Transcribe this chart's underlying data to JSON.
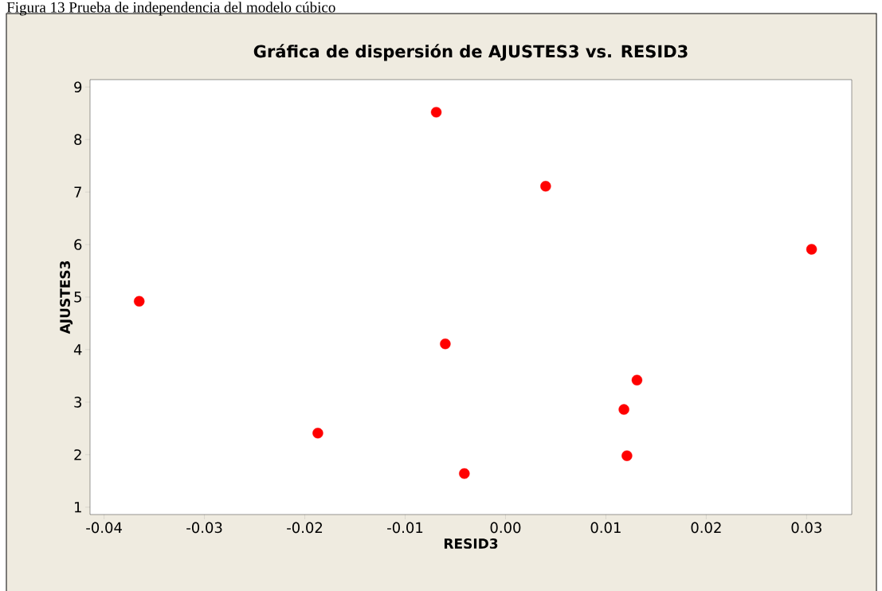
{
  "chart_data": {
    "type": "scatter",
    "title": "Gráfica de dispersión de AJUSTES3 vs. RESID3",
    "xlabel": "RESID3",
    "ylabel": "AJUSTES3",
    "annotations": [
      "Figura 13 Prueba de independencia del modelo cúbico"
    ],
    "x": [
      -0.0365,
      -0.0187,
      -0.0069,
      -0.006,
      -0.0041,
      0.004,
      0.0118,
      0.0121,
      0.0131,
      0.0305
    ],
    "series": [
      {
        "color": "#ff0000",
        "values": [
          4.92,
          2.41,
          8.52,
          4.11,
          1.64,
          7.11,
          2.86,
          1.98,
          3.42,
          5.91
        ]
      }
    ],
    "marker": "circle",
    "xlim": [
      -0.0414,
      0.0345
    ],
    "ylim": [
      0.86,
      9.14
    ],
    "xticks": [
      {
        "value": -0.04,
        "label": "-0.04"
      },
      {
        "value": -0.03,
        "label": "-0.03"
      },
      {
        "value": -0.02,
        "label": "-0.02"
      },
      {
        "value": -0.01,
        "label": "-0.01"
      },
      {
        "value": 0,
        "label": "0.00"
      },
      {
        "value": 0.01,
        "label": "0.01"
      },
      {
        "value": 0.02,
        "label": "0.02"
      },
      {
        "value": 0.03,
        "label": "0.03"
      }
    ],
    "yticks": [
      1,
      2,
      3,
      4,
      5,
      6,
      7,
      8,
      9
    ]
  }
}
